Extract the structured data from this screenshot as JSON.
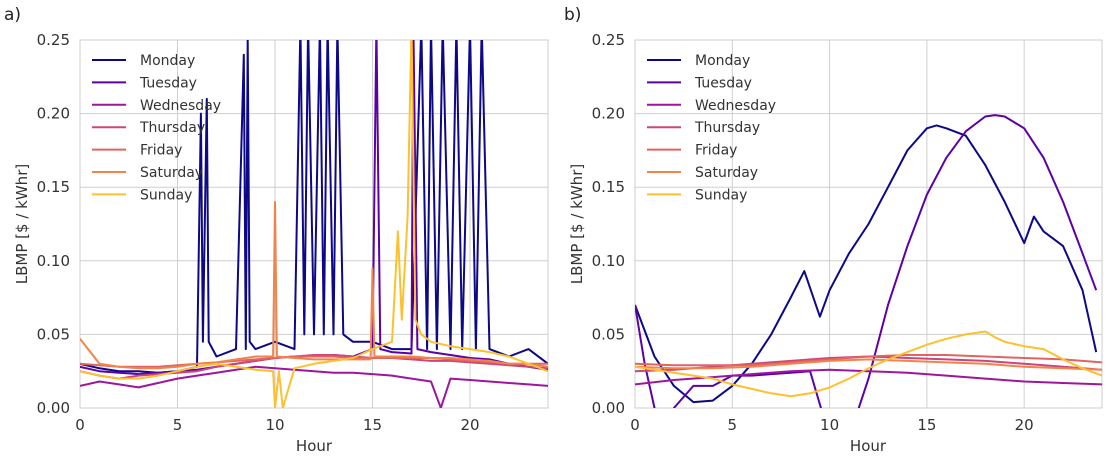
{
  "chart_data": [
    {
      "type": "line",
      "panel_label": "a)",
      "xlabel": "Hour",
      "ylabel": "LBMP [$ / kWhr]",
      "xlim": [
        0,
        24
      ],
      "ylim": [
        0,
        0.25
      ],
      "xticks": [
        0,
        5,
        10,
        15,
        20
      ],
      "yticks": [
        0.0,
        0.05,
        0.1,
        0.15,
        0.2,
        0.25
      ],
      "ytick_labels": [
        "0.00",
        "0.05",
        "0.10",
        "0.15",
        "0.20",
        "0.25"
      ],
      "grid": true,
      "legend_position": "top-left",
      "series": [
        {
          "name": "Monday",
          "color": "#0d0887",
          "x": [
            0,
            1,
            2,
            3,
            4,
            5,
            6,
            6.2,
            6.3,
            6.5,
            6.6,
            6.8,
            7,
            8,
            8.4,
            8.5,
            8.6,
            8.7,
            9,
            10,
            11,
            11.3,
            11.5,
            11.7,
            12,
            12.3,
            12.5,
            12.7,
            13,
            13.2,
            13.5,
            14,
            15,
            16,
            17,
            17.5,
            17.8,
            18,
            18.3,
            18.6,
            19,
            19.3,
            19.6,
            20,
            20.3,
            20.6,
            21,
            22,
            23,
            24
          ],
          "y": [
            0.03,
            0.027,
            0.025,
            0.025,
            0.024,
            0.025,
            0.028,
            0.2,
            0.045,
            0.21,
            0.045,
            0.04,
            0.035,
            0.04,
            0.24,
            0.04,
            0.25,
            0.045,
            0.04,
            0.045,
            0.04,
            0.26,
            0.05,
            0.26,
            0.05,
            0.26,
            0.05,
            0.26,
            0.05,
            0.26,
            0.05,
            0.045,
            0.045,
            0.04,
            0.04,
            0.26,
            0.04,
            0.26,
            0.04,
            0.26,
            0.04,
            0.26,
            0.04,
            0.26,
            0.04,
            0.26,
            0.04,
            0.035,
            0.04,
            0.03
          ]
        },
        {
          "name": "Tuesday",
          "color": "#5c01a6",
          "x": [
            0,
            1,
            2,
            3,
            4,
            5,
            6,
            7,
            8,
            9,
            10,
            11,
            12,
            13,
            14,
            15,
            15.2,
            15.4,
            16,
            17,
            17.1,
            17.3,
            18,
            19,
            20,
            21,
            22,
            23,
            24
          ],
          "y": [
            0.028,
            0.025,
            0.024,
            0.023,
            0.024,
            0.025,
            0.026,
            0.028,
            0.03,
            0.032,
            0.034,
            0.035,
            0.035,
            0.036,
            0.035,
            0.04,
            0.26,
            0.04,
            0.038,
            0.037,
            0.26,
            0.04,
            0.038,
            0.036,
            0.034,
            0.033,
            0.03,
            0.028,
            0.026
          ]
        },
        {
          "name": "Wednesday",
          "color": "#9c179e",
          "x": [
            0,
            1,
            2,
            3,
            4,
            5,
            6,
            7,
            8,
            9,
            10,
            11,
            12,
            13,
            14,
            15,
            16,
            17,
            18,
            18.5,
            19,
            20,
            21,
            22,
            23,
            24
          ],
          "y": [
            0.015,
            0.018,
            0.016,
            0.014,
            0.017,
            0.02,
            0.022,
            0.024,
            0.026,
            0.028,
            0.027,
            0.026,
            0.025,
            0.024,
            0.024,
            0.023,
            0.022,
            0.02,
            0.018,
            0.0,
            0.02,
            0.019,
            0.018,
            0.017,
            0.016,
            0.015
          ]
        },
        {
          "name": "Thursday",
          "color": "#cb4679",
          "x": [
            0,
            1,
            2,
            3,
            4,
            5,
            6,
            7,
            8,
            9,
            10,
            11,
            12,
            13,
            14,
            15,
            16,
            17,
            18,
            19,
            20,
            21,
            22,
            23,
            24
          ],
          "y": [
            0.025,
            0.022,
            0.02,
            0.022,
            0.023,
            0.024,
            0.025,
            0.028,
            0.03,
            0.032,
            0.034,
            0.035,
            0.036,
            0.036,
            0.035,
            0.034,
            0.034,
            0.033,
            0.032,
            0.032,
            0.031,
            0.03,
            0.029,
            0.028,
            0.027
          ]
        },
        {
          "name": "Friday",
          "color": "#e16462",
          "x": [
            0,
            1,
            2,
            3,
            4,
            5,
            6,
            7,
            8,
            9,
            10,
            11,
            12,
            13,
            14,
            15,
            16,
            17,
            18,
            19,
            20,
            21,
            22,
            23,
            24
          ],
          "y": [
            0.03,
            0.029,
            0.028,
            0.028,
            0.028,
            0.029,
            0.03,
            0.031,
            0.032,
            0.033,
            0.034,
            0.035,
            0.035,
            0.035,
            0.034,
            0.034,
            0.034,
            0.034,
            0.034,
            0.033,
            0.032,
            0.031,
            0.03,
            0.03,
            0.03
          ]
        },
        {
          "name": "Saturday",
          "color": "#f1844b",
          "x": [
            0,
            1,
            2,
            3,
            4,
            5,
            6,
            7,
            8,
            9,
            9.9,
            10,
            10.1,
            11,
            12,
            13,
            14,
            14.9,
            15,
            15.1,
            16,
            17,
            18,
            19,
            20,
            21,
            22,
            23,
            24
          ],
          "y": [
            0.047,
            0.03,
            0.028,
            0.027,
            0.027,
            0.028,
            0.03,
            0.031,
            0.033,
            0.035,
            0.035,
            0.14,
            0.035,
            0.034,
            0.033,
            0.033,
            0.033,
            0.033,
            0.095,
            0.035,
            0.035,
            0.035,
            0.034,
            0.034,
            0.033,
            0.032,
            0.03,
            0.03,
            0.028
          ]
        },
        {
          "name": "Sunday",
          "color": "#fcc030",
          "x": [
            0,
            1,
            2,
            3,
            4,
            5,
            6,
            7,
            8,
            9,
            9.9,
            10,
            10.2,
            10.4,
            11,
            12,
            13,
            14,
            15,
            16,
            16.3,
            16.5,
            16.8,
            17,
            17.2,
            17.5,
            18,
            19,
            20,
            21,
            22,
            23,
            24
          ],
          "y": [
            0.025,
            0.022,
            0.02,
            0.02,
            0.022,
            0.025,
            0.028,
            0.03,
            0.028,
            0.026,
            0.025,
            0.0,
            0.025,
            0.0,
            0.027,
            0.03,
            0.032,
            0.034,
            0.04,
            0.045,
            0.12,
            0.06,
            0.13,
            0.26,
            0.06,
            0.05,
            0.045,
            0.042,
            0.04,
            0.038,
            0.035,
            0.03,
            0.025
          ]
        }
      ]
    },
    {
      "type": "line",
      "panel_label": "b)",
      "xlabel": "Hour",
      "ylabel": "LBMP [$ / kWhr]",
      "xlim": [
        0,
        24
      ],
      "ylim": [
        0,
        0.25
      ],
      "xticks": [
        0,
        5,
        10,
        15,
        20
      ],
      "yticks": [
        0.0,
        0.05,
        0.1,
        0.15,
        0.2,
        0.25
      ],
      "ytick_labels": [
        "0.00",
        "0.05",
        "0.10",
        "0.15",
        "0.20",
        "0.25"
      ],
      "grid": true,
      "legend_position": "top-left",
      "series": [
        {
          "name": "Monday",
          "color": "#0d0887",
          "x": [
            0,
            1,
            2,
            3,
            4,
            5,
            6,
            7,
            8,
            8.7,
            9.5,
            10,
            11,
            12,
            13,
            14,
            15,
            15.5,
            16,
            17,
            18,
            19,
            20,
            20.5,
            21,
            22,
            23,
            23.7
          ],
          "y": [
            0.07,
            0.035,
            0.015,
            0.004,
            0.005,
            0.015,
            0.03,
            0.05,
            0.075,
            0.093,
            0.062,
            0.08,
            0.105,
            0.125,
            0.15,
            0.175,
            0.19,
            0.192,
            0.19,
            0.185,
            0.165,
            0.14,
            0.112,
            0.13,
            0.12,
            0.11,
            0.08,
            0.038
          ]
        },
        {
          "name": "Tuesday",
          "color": "#5c01a6",
          "x": [
            0,
            0.5,
            1,
            1.5,
            2,
            3,
            4,
            5,
            6,
            7,
            8,
            9,
            10,
            11,
            12,
            13,
            14,
            15,
            16,
            17,
            18,
            18.5,
            19,
            20,
            21,
            22,
            23,
            23.7
          ],
          "y": [
            0.07,
            0.03,
            0.0,
            -0.02,
            0.0,
            0.015,
            0.015,
            0.022,
            0.022,
            0.023,
            0.024,
            0.025,
            -0.02,
            -0.02,
            0.02,
            0.07,
            0.11,
            0.145,
            0.17,
            0.188,
            0.198,
            0.199,
            0.198,
            0.19,
            0.17,
            0.14,
            0.105,
            0.08
          ]
        },
        {
          "name": "Wednesday",
          "color": "#9c179e",
          "x": [
            0,
            2,
            4,
            6,
            8,
            10,
            12,
            14,
            16,
            18,
            20,
            22,
            24
          ],
          "y": [
            0.016,
            0.019,
            0.021,
            0.023,
            0.025,
            0.026,
            0.025,
            0.024,
            0.022,
            0.02,
            0.018,
            0.017,
            0.016
          ]
        },
        {
          "name": "Thursday",
          "color": "#cb4679",
          "x": [
            0,
            2,
            4,
            6,
            8,
            10,
            12,
            14,
            16,
            18,
            20,
            22,
            24
          ],
          "y": [
            0.025,
            0.026,
            0.028,
            0.03,
            0.032,
            0.034,
            0.035,
            0.034,
            0.033,
            0.032,
            0.03,
            0.028,
            0.026
          ]
        },
        {
          "name": "Friday",
          "color": "#e16462",
          "x": [
            0,
            2,
            4,
            6,
            8,
            10,
            12,
            14,
            16,
            18,
            20,
            22,
            24
          ],
          "y": [
            0.03,
            0.029,
            0.029,
            0.029,
            0.031,
            0.033,
            0.035,
            0.036,
            0.036,
            0.035,
            0.034,
            0.033,
            0.031
          ]
        },
        {
          "name": "Saturday",
          "color": "#f1844b",
          "x": [
            0,
            2,
            4,
            6,
            8,
            10,
            12,
            14,
            16,
            18,
            20,
            22,
            24
          ],
          "y": [
            0.028,
            0.027,
            0.027,
            0.028,
            0.03,
            0.032,
            0.033,
            0.032,
            0.031,
            0.03,
            0.028,
            0.027,
            0.026
          ]
        },
        {
          "name": "Sunday",
          "color": "#fcc030",
          "x": [
            0,
            1,
            2,
            3,
            4,
            5,
            6,
            7,
            8,
            9,
            10,
            11,
            12,
            13,
            14,
            15,
            16,
            17,
            18,
            18.5,
            19,
            20,
            21,
            22,
            23,
            24
          ],
          "y": [
            0.028,
            0.026,
            0.024,
            0.022,
            0.02,
            0.016,
            0.013,
            0.01,
            0.008,
            0.01,
            0.014,
            0.02,
            0.027,
            0.033,
            0.038,
            0.043,
            0.047,
            0.05,
            0.052,
            0.048,
            0.045,
            0.042,
            0.04,
            0.033,
            0.027,
            0.022
          ]
        }
      ]
    }
  ]
}
